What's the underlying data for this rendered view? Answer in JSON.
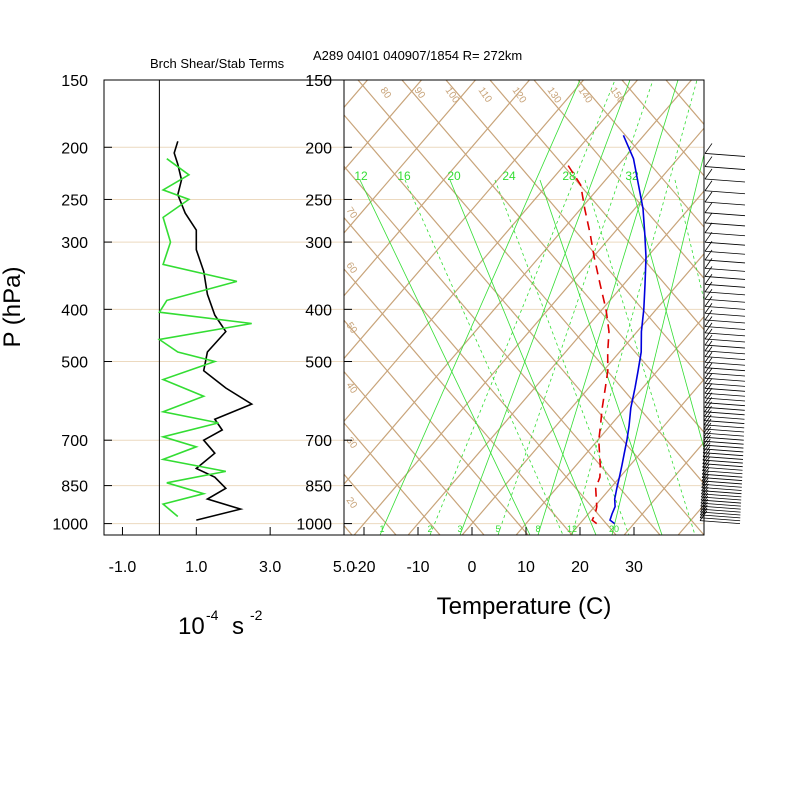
{
  "header": {
    "left_title": "Brch Shear/Stab Terms",
    "right_title": "A289 04I01 040907/1854 R= 272km"
  },
  "axes": {
    "ylabel": "P (hPa)",
    "left_xlabel_base": "10",
    "left_xlabel_exp": "-4",
    "left_xlabel_unit": "s",
    "left_xlabel_unit_exp": "-2",
    "right_xlabel": "Temperature (C)"
  },
  "colors": {
    "grid_tan": "#c8a47a",
    "pressure_line": "#ecd9bf",
    "mixing_ratio": "#33dd33",
    "temperature": "#0000dd",
    "dewpoint": "#dd0000",
    "shear": "#000000",
    "stab": "#33dd33",
    "wind_barb": "#000000"
  },
  "chart_data": [
    {
      "type": "line",
      "title": "Brch Shear/Stab Terms",
      "ylabel": "P (hPa)",
      "xlabel": "10-4 s-2",
      "y_scale": "log-pressure",
      "ylim": [
        1050,
        150
      ],
      "xlim": [
        -1.5,
        5.0
      ],
      "x_ticks": [
        "-1.0",
        "1.0",
        "3.0",
        "5.0"
      ],
      "y_ticks": [
        "150",
        "200",
        "250",
        "300",
        "400",
        "500",
        "700",
        "850",
        "1000"
      ],
      "series": [
        {
          "color": "#000000",
          "points": [
            [
              0.5,
              195
            ],
            [
              0.4,
              205
            ],
            [
              0.5,
              215
            ],
            [
              0.6,
              230
            ],
            [
              0.5,
              245
            ],
            [
              0.7,
              265
            ],
            [
              1.0,
              285
            ],
            [
              1.0,
              310
            ],
            [
              1.2,
              340
            ],
            [
              1.3,
              375
            ],
            [
              1.5,
              410
            ],
            [
              1.8,
              440
            ],
            [
              1.3,
              480
            ],
            [
              1.2,
              520
            ],
            [
              1.8,
              560
            ],
            [
              2.5,
              600
            ],
            [
              1.5,
              640
            ],
            [
              1.7,
              670
            ],
            [
              1.2,
              700
            ],
            [
              1.5,
              740
            ],
            [
              1.0,
              790
            ],
            [
              1.5,
              820
            ],
            [
              1.8,
              860
            ],
            [
              1.3,
              900
            ],
            [
              2.2,
              940
            ],
            [
              1.0,
              985
            ]
          ]
        },
        {
          "color": "#33dd33",
          "points": [
            [
              0.2,
              210
            ],
            [
              0.8,
              225
            ],
            [
              0.1,
              240
            ],
            [
              0.8,
              250
            ],
            [
              0.1,
              270
            ],
            [
              0.3,
              300
            ],
            [
              0.1,
              330
            ],
            [
              2.1,
              355
            ],
            [
              0.2,
              385
            ],
            [
              0.0,
              405
            ],
            [
              2.5,
              425
            ],
            [
              0.0,
              455
            ],
            [
              0.5,
              480
            ],
            [
              1.5,
              500
            ],
            [
              0.1,
              540
            ],
            [
              1.2,
              580
            ],
            [
              0.1,
              620
            ],
            [
              1.6,
              650
            ],
            [
              0.1,
              690
            ],
            [
              1.0,
              720
            ],
            [
              0.1,
              760
            ],
            [
              1.8,
              800
            ],
            [
              0.2,
              840
            ],
            [
              1.2,
              880
            ],
            [
              0.1,
              920
            ],
            [
              0.5,
              970
            ]
          ]
        }
      ]
    },
    {
      "type": "line",
      "title": "A289 04I01 040907/1854 R= 272km",
      "xlabel": "Temperature (C)",
      "y_scale": "log-pressure skew-T",
      "ylim": [
        1050,
        150
      ],
      "xlim": [
        -23,
        43
      ],
      "x_ticks": [
        "-20",
        "-10",
        "0",
        "10",
        "20",
        "30"
      ],
      "series": [
        {
          "name": "temperature",
          "color": "#0000dd",
          "line_style": "solid",
          "points": [
            [
              26.4,
              1000
            ],
            [
              25.0,
              985
            ],
            [
              24.4,
              960
            ],
            [
              23.8,
              930
            ],
            [
              22.5,
              900
            ],
            [
              21.2,
              860
            ],
            [
              19.9,
              820
            ],
            [
              18.5,
              780
            ],
            [
              17.0,
              740
            ],
            [
              15.4,
              700
            ],
            [
              13.6,
              660
            ],
            [
              11.0,
              610
            ],
            [
              8.6,
              560
            ],
            [
              6.4,
              520
            ],
            [
              4.0,
              480
            ],
            [
              0.8,
              440
            ],
            [
              -2.3,
              400
            ],
            [
              -6.0,
              360
            ],
            [
              -10.2,
              320
            ],
            [
              -14.1,
              290
            ],
            [
              -18.5,
              260
            ],
            [
              -23.1,
              235
            ],
            [
              -28.2,
              210
            ],
            [
              -33.8,
              190
            ]
          ]
        },
        {
          "name": "dewpoint",
          "color": "#dd0000",
          "line_style": "dashed",
          "points": [
            [
              23.1,
              1000
            ],
            [
              21.7,
              985
            ],
            [
              21.3,
              960
            ],
            [
              20.4,
              930
            ],
            [
              19.1,
              900
            ],
            [
              17.3,
              860
            ],
            [
              16.3,
              820
            ],
            [
              14.5,
              780
            ],
            [
              12.4,
              740
            ],
            [
              10.2,
              700
            ],
            [
              8.3,
              660
            ],
            [
              5.7,
              610
            ],
            [
              3.1,
              560
            ],
            [
              0.8,
              520
            ],
            [
              -2.2,
              480
            ],
            [
              -5.2,
              440
            ],
            [
              -9.3,
              400
            ],
            [
              -14.3,
              360
            ],
            [
              -19.8,
              320
            ],
            [
              -24.2,
              290
            ],
            [
              -29.3,
              260
            ],
            [
              -33.8,
              235
            ],
            [
              -39.6,
              215
            ]
          ]
        }
      ],
      "mixing_ratio_labels": [
        "1",
        "2",
        "3",
        "5",
        "8",
        "12",
        "20",
        "12",
        "16",
        "20",
        "24",
        "28",
        "32"
      ],
      "dry_adiabat_labels": [
        "20",
        "30",
        "40",
        "50",
        "60",
        "70",
        "80",
        "90",
        "100",
        "110",
        "120",
        "130",
        "140",
        "150"
      ],
      "wind_barbs": "plotted at right edge, 1000 to 200 hPa"
    }
  ]
}
